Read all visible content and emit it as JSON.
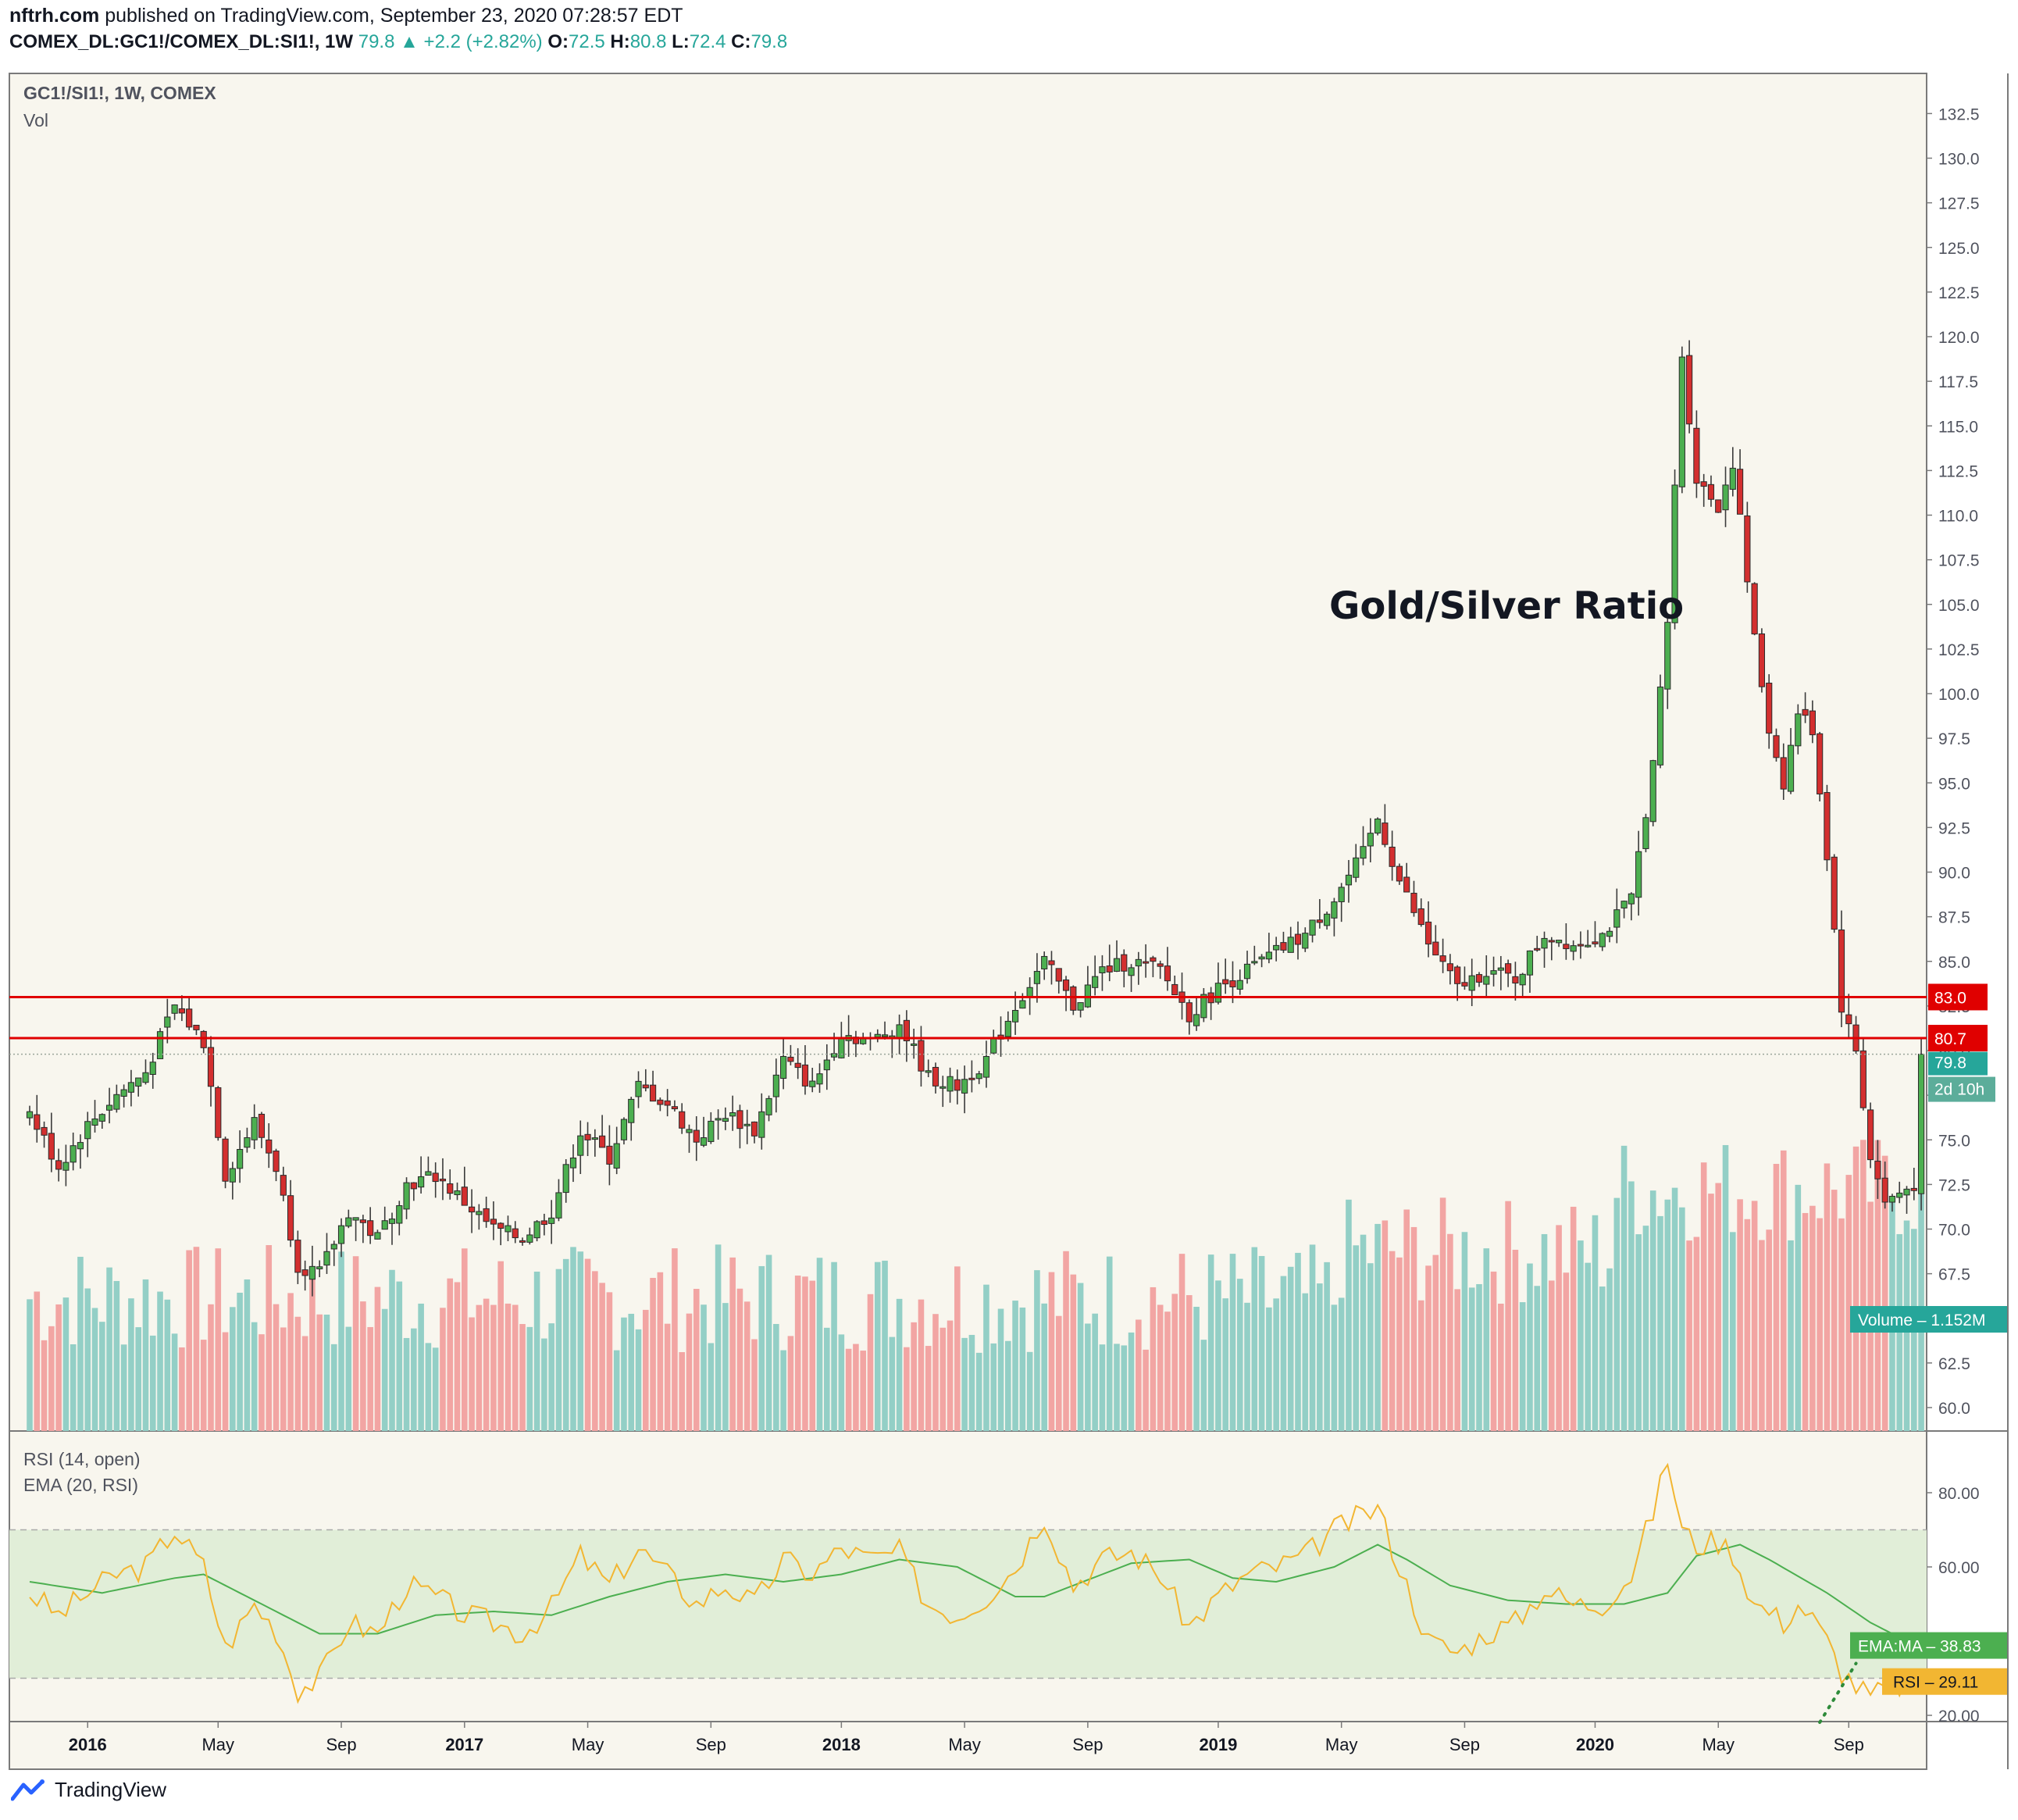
{
  "header": {
    "author": "nftrh.com",
    "published_text": " published on TradingView.com, September 23, 2020 07:28:57 EDT",
    "symbol": "COMEX_DL:GC1!/COMEX_DL:SI1!, 1W",
    "last": "79.8",
    "change": "+2.2 (+2.82%)",
    "o_label": "O:",
    "o": "72.5",
    "h_label": "H:",
    "h": "80.8",
    "l_label": "L:",
    "l": "72.4",
    "c_label": "C:",
    "c": "79.8"
  },
  "footer": {
    "brand": "TradingView"
  },
  "colors": {
    "up": "#26a69a",
    "down": "#ef5350",
    "candle_up": "#4caf50",
    "candle_down": "#d32f2f",
    "level": "#e00000",
    "rsi": "#f2b632",
    "ema": "#4caf50",
    "band": "#e1eed8",
    "bg": "#f8f6ee"
  },
  "chart_data": [
    {
      "type": "candlestick",
      "pane": "main",
      "legend": [
        "GC1!/SI1!, 1W, COMEX",
        "Vol"
      ],
      "annotation": "Gold/Silver Ratio",
      "ylim": [
        58,
        133.5
      ],
      "y_ticks": [
        60.0,
        62.5,
        65.0,
        67.5,
        70.0,
        72.5,
        75.0,
        77.5,
        80.0,
        82.5,
        85.0,
        87.5,
        90.0,
        92.5,
        95.0,
        97.5,
        100.0,
        102.5,
        105.0,
        107.5,
        110.0,
        112.5,
        115.0,
        117.5,
        120.0,
        122.5,
        125.0,
        127.5,
        130.0,
        132.5
      ],
      "x_ticks": [
        {
          "label": "2016",
          "week": 8
        },
        {
          "label": "May",
          "week": 26
        },
        {
          "label": "Sep",
          "week": 43
        },
        {
          "label": "2017",
          "week": 60
        },
        {
          "label": "May",
          "week": 77
        },
        {
          "label": "Sep",
          "week": 94
        },
        {
          "label": "2018",
          "week": 112
        },
        {
          "label": "May",
          "week": 129
        },
        {
          "label": "Sep",
          "week": 146
        },
        {
          "label": "2019",
          "week": 164
        },
        {
          "label": "May",
          "week": 181
        },
        {
          "label": "Sep",
          "week": 198
        },
        {
          "label": "2020",
          "week": 216
        },
        {
          "label": "May",
          "week": 233
        },
        {
          "label": "Sep",
          "week": 251
        }
      ],
      "levels": [
        {
          "label": "83.0",
          "value": 83.0
        },
        {
          "label": "80.7",
          "value": 80.7
        }
      ],
      "last_price": {
        "label": "79.8",
        "value": 79.8,
        "countdown": "2d 10h"
      },
      "close_anchors": [
        [
          0,
          76.5
        ],
        [
          4,
          73.5
        ],
        [
          8,
          75.8
        ],
        [
          12,
          77.5
        ],
        [
          16,
          78.8
        ],
        [
          20,
          82.5
        ],
        [
          24,
          80.5
        ],
        [
          27,
          73.0
        ],
        [
          31,
          76.0
        ],
        [
          34,
          73.5
        ],
        [
          37,
          68.0
        ],
        [
          40,
          67.5
        ],
        [
          44,
          71.0
        ],
        [
          48,
          69.5
        ],
        [
          52,
          72.5
        ],
        [
          56,
          73.0
        ],
        [
          60,
          71.5
        ],
        [
          64,
          70.0
        ],
        [
          68,
          69.5
        ],
        [
          72,
          71.0
        ],
        [
          76,
          75.5
        ],
        [
          80,
          74.0
        ],
        [
          84,
          78.0
        ],
        [
          88,
          77.0
        ],
        [
          92,
          75.0
        ],
        [
          96,
          76.5
        ],
        [
          100,
          75.5
        ],
        [
          104,
          79.5
        ],
        [
          108,
          78.0
        ],
        [
          112,
          81.0
        ],
        [
          116,
          80.5
        ],
        [
          120,
          81.5
        ],
        [
          124,
          78.5
        ],
        [
          128,
          78.0
        ],
        [
          132,
          79.5
        ],
        [
          136,
          82.5
        ],
        [
          140,
          85.0
        ],
        [
          144,
          82.5
        ],
        [
          148,
          84.5
        ],
        [
          152,
          85.0
        ],
        [
          156,
          84.5
        ],
        [
          160,
          82.0
        ],
        [
          164,
          83.5
        ],
        [
          168,
          84.5
        ],
        [
          172,
          85.5
        ],
        [
          176,
          86.5
        ],
        [
          180,
          88.5
        ],
        [
          184,
          91.0
        ],
        [
          186,
          93.0
        ],
        [
          189,
          89.5
        ],
        [
          193,
          86.0
        ],
        [
          197,
          83.5
        ],
        [
          201,
          84.5
        ],
        [
          205,
          84.0
        ],
        [
          209,
          86.5
        ],
        [
          213,
          86.0
        ],
        [
          217,
          86.5
        ],
        [
          221,
          88.5
        ],
        [
          224,
          96.0
        ],
        [
          226,
          104.0
        ],
        [
          228,
          119.0
        ],
        [
          230,
          112.0
        ],
        [
          233,
          110.5
        ],
        [
          235,
          113.0
        ],
        [
          238,
          103.0
        ],
        [
          240,
          98.0
        ],
        [
          242,
          95.0
        ],
        [
          244,
          99.0
        ],
        [
          246,
          98.0
        ],
        [
          248,
          91.0
        ],
        [
          250,
          82.5
        ],
        [
          252,
          80.0
        ],
        [
          254,
          74.0
        ],
        [
          256,
          71.5
        ],
        [
          258,
          72.0
        ],
        [
          260,
          72.5
        ],
        [
          261,
          79.8
        ]
      ],
      "volume_pane": {
        "label": "Volume",
        "last_value": "1.152M"
      }
    },
    {
      "type": "line",
      "pane": "rsi",
      "legend": [
        "RSI (14, open)",
        "EMA (20, RSI)"
      ],
      "ylim": [
        20,
        87
      ],
      "y_ticks": [
        20.0,
        40.0,
        60.0,
        80.0
      ],
      "band": [
        30,
        70
      ],
      "series": [
        {
          "name": "RSI",
          "last": "29.11",
          "anchors": [
            [
              0,
              53
            ],
            [
              4,
              47
            ],
            [
              8,
              53
            ],
            [
              12,
              58
            ],
            [
              16,
              60
            ],
            [
              20,
              70
            ],
            [
              24,
              60
            ],
            [
              27,
              38
            ],
            [
              31,
              50
            ],
            [
              34,
              43
            ],
            [
              37,
              27
            ],
            [
              40,
              30
            ],
            [
              44,
              45
            ],
            [
              48,
              42
            ],
            [
              52,
              55
            ],
            [
              56,
              52
            ],
            [
              60,
              47
            ],
            [
              64,
              45
            ],
            [
              68,
              42
            ],
            [
              72,
              49
            ],
            [
              76,
              63
            ],
            [
              80,
              55
            ],
            [
              84,
              65
            ],
            [
              88,
              58
            ],
            [
              92,
              50
            ],
            [
              96,
              55
            ],
            [
              100,
              50
            ],
            [
              104,
              62
            ],
            [
              108,
              58
            ],
            [
              112,
              65
            ],
            [
              116,
              62
            ],
            [
              120,
              64
            ],
            [
              124,
              50
            ],
            [
              128,
              47
            ],
            [
              132,
              52
            ],
            [
              136,
              60
            ],
            [
              140,
              74
            ],
            [
              144,
              55
            ],
            [
              148,
              62
            ],
            [
              152,
              64
            ],
            [
              156,
              58
            ],
            [
              160,
              44
            ],
            [
              164,
              52
            ],
            [
              168,
              58
            ],
            [
              172,
              60
            ],
            [
              176,
              63
            ],
            [
              180,
              70
            ],
            [
              184,
              74
            ],
            [
              186,
              76
            ],
            [
              189,
              60
            ],
            [
              193,
              40
            ],
            [
              197,
              37
            ],
            [
              201,
              42
            ],
            [
              205,
              45
            ],
            [
              209,
              54
            ],
            [
              213,
              50
            ],
            [
              217,
              50
            ],
            [
              221,
              58
            ],
            [
              224,
              75
            ],
            [
              226,
              89
            ],
            [
              228,
              70
            ],
            [
              230,
              66
            ],
            [
              233,
              67
            ],
            [
              235,
              64
            ],
            [
              238,
              50
            ],
            [
              240,
              48
            ],
            [
              242,
              45
            ],
            [
              244,
              50
            ],
            [
              246,
              46
            ],
            [
              248,
              40
            ],
            [
              250,
              32
            ],
            [
              252,
              28
            ],
            [
              254,
              25
            ],
            [
              256,
              27
            ],
            [
              258,
              28
            ],
            [
              260,
              29.11
            ]
          ]
        },
        {
          "name": "EMA:MA",
          "last": "38.83",
          "anchors": [
            [
              0,
              56
            ],
            [
              10,
              53
            ],
            [
              20,
              57
            ],
            [
              24,
              58
            ],
            [
              32,
              50
            ],
            [
              40,
              42
            ],
            [
              48,
              42
            ],
            [
              56,
              47
            ],
            [
              64,
              48
            ],
            [
              72,
              47
            ],
            [
              80,
              52
            ],
            [
              88,
              56
            ],
            [
              96,
              58
            ],
            [
              104,
              56
            ],
            [
              112,
              58
            ],
            [
              120,
              62
            ],
            [
              128,
              60
            ],
            [
              136,
              52
            ],
            [
              140,
              52
            ],
            [
              148,
              58
            ],
            [
              152,
              61
            ],
            [
              160,
              62
            ],
            [
              166,
              57
            ],
            [
              172,
              56
            ],
            [
              180,
              60
            ],
            [
              186,
              66
            ],
            [
              190,
              62
            ],
            [
              196,
              55
            ],
            [
              204,
              51
            ],
            [
              212,
              50
            ],
            [
              220,
              50
            ],
            [
              226,
              53
            ],
            [
              230,
              63
            ],
            [
              236,
              66
            ],
            [
              240,
              62
            ],
            [
              248,
              53
            ],
            [
              254,
              45
            ],
            [
              258,
              41
            ],
            [
              260,
              38.83
            ]
          ]
        }
      ]
    }
  ]
}
